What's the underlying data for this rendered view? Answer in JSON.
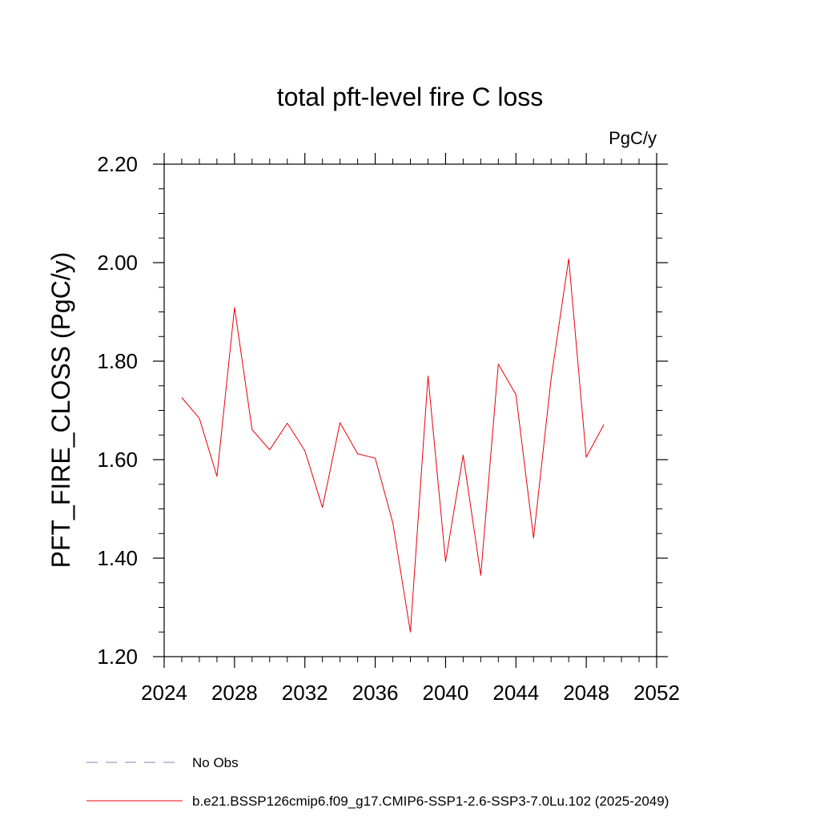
{
  "chart_data": {
    "type": "line",
    "title": "total pft-level fire C loss",
    "units": "PgC/y",
    "xlabel": "",
    "ylabel": "PFT_FIRE_CLOSS  (PgC/y)",
    "xlim": [
      2024,
      2052
    ],
    "ylim": [
      1.2,
      2.2
    ],
    "xticks": [
      2024,
      2028,
      2032,
      2036,
      2040,
      2044,
      2048,
      2052
    ],
    "xtick_labels": [
      "2024",
      "2028",
      "2032",
      "2036",
      "2040",
      "2044",
      "2048",
      "2052"
    ],
    "yticks": [
      1.2,
      1.4,
      1.6,
      1.8,
      2.0,
      2.2
    ],
    "ytick_labels": [
      "1.20",
      "1.40",
      "1.60",
      "1.80",
      "2.00",
      "2.20"
    ],
    "grid": false,
    "legend_position": "bottom",
    "legend": [
      {
        "label": "No Obs",
        "color": "#7f7fbf",
        "style": "dashed"
      },
      {
        "label": "b.e21.BSSP126cmip6.f09_g17.CMIP6-SSP1-2.6-SSP3-7.0Lu.102 (2025-2049)",
        "color": "#e8000b",
        "style": "solid"
      }
    ],
    "series": [
      {
        "color": "#e8000b",
        "x": [
          2025,
          2026,
          2027,
          2028,
          2029,
          2030,
          2031,
          2032,
          2033,
          2034,
          2035,
          2036,
          2037,
          2038,
          2039,
          2040,
          2041,
          2042,
          2043,
          2044,
          2045,
          2046,
          2047,
          2048,
          2049
        ],
        "values": [
          1.726,
          1.684,
          1.566,
          1.909,
          1.661,
          1.62,
          1.674,
          1.618,
          1.503,
          1.675,
          1.612,
          1.603,
          1.472,
          1.25,
          1.77,
          1.393,
          1.609,
          1.365,
          1.794,
          1.732,
          1.441,
          1.764,
          2.008,
          1.605,
          1.671
        ]
      }
    ]
  }
}
